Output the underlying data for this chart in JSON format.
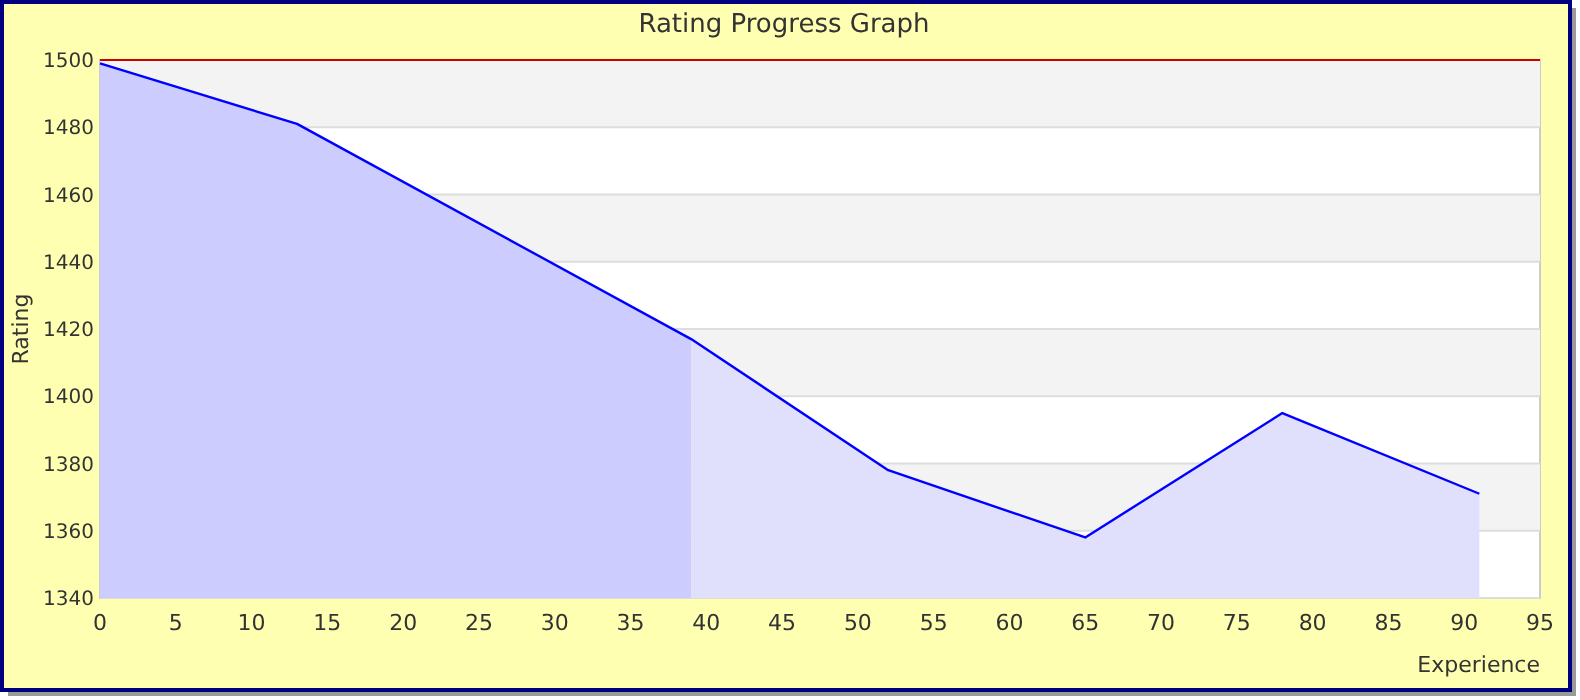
{
  "chart_data": {
    "type": "area",
    "title": "Rating Progress Graph",
    "xlabel": "Experience",
    "ylabel": "Rating",
    "series": [
      {
        "color": "#ccccff",
        "x": [
          0,
          13,
          39
        ],
        "values": [
          1499,
          1481,
          1417
        ]
      },
      {
        "color": "#e0e0fc",
        "x": [
          39,
          52,
          65,
          78,
          91
        ],
        "values": [
          1417,
          1378,
          1358,
          1395,
          1371
        ]
      },
      {
        "type": "line",
        "color": "#0000ff",
        "x": [
          0,
          13,
          39,
          52,
          65,
          78,
          91
        ],
        "values": [
          1499,
          1481,
          1417,
          1378,
          1358,
          1395,
          1371
        ]
      }
    ],
    "xlim": [
      0,
      95
    ],
    "xticks": [
      0,
      5,
      10,
      15,
      20,
      25,
      30,
      35,
      40,
      45,
      50,
      55,
      60,
      65,
      70,
      75,
      80,
      85,
      90,
      95
    ],
    "ylim": [
      1340,
      1500
    ],
    "yticks": [
      1340,
      1360,
      1380,
      1400,
      1420,
      1440,
      1460,
      1480,
      1500
    ],
    "grid": "y",
    "marker": "none",
    "line_style": "solid",
    "ref_lines": [
      {
        "axis": "y",
        "value": 1500,
        "color": "#cc0000"
      }
    ]
  }
}
